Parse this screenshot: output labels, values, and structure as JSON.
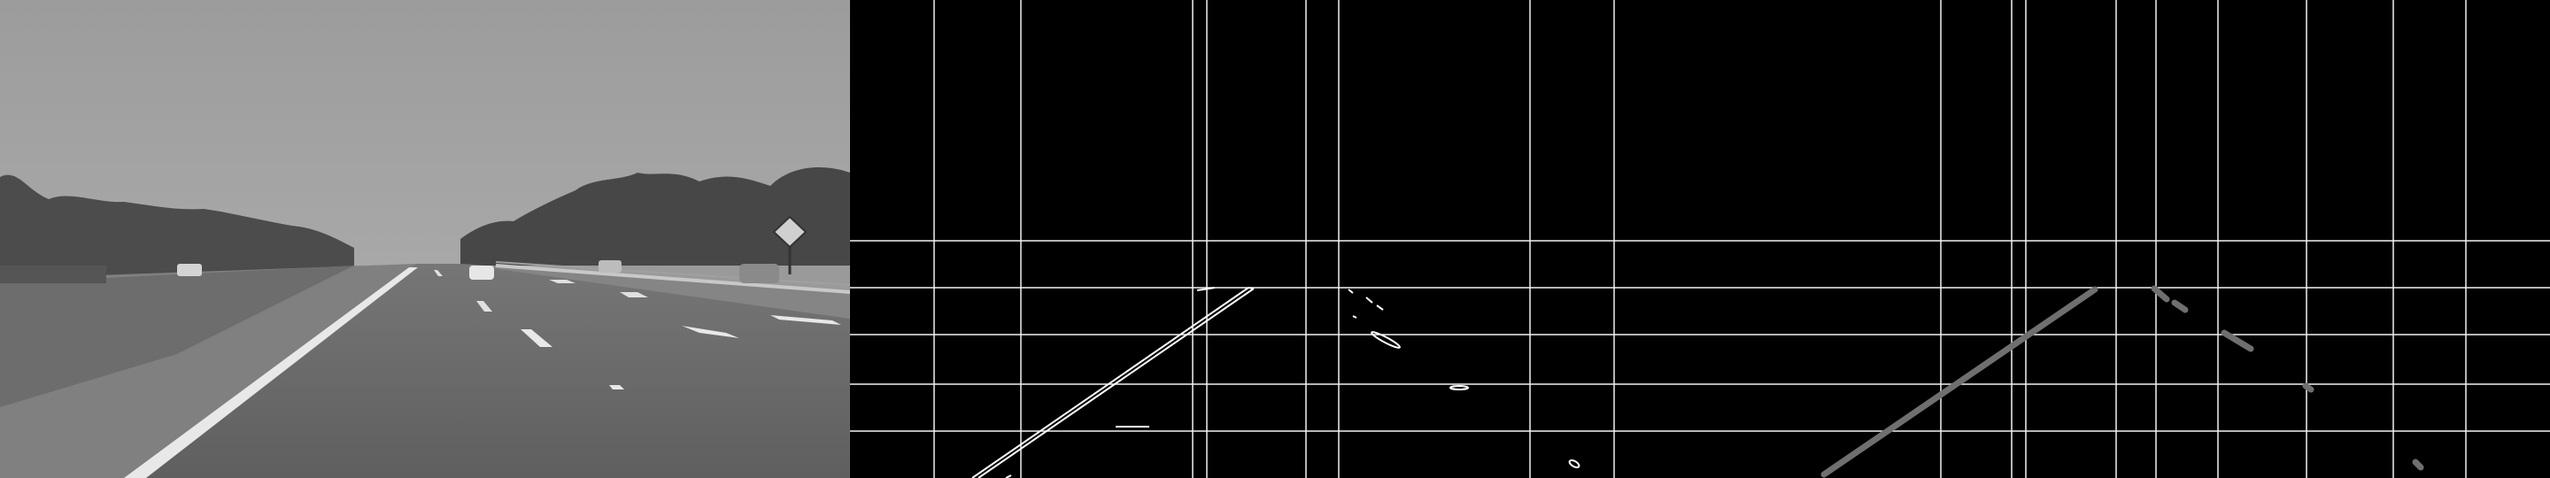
{
  "panels": [
    {
      "id": "p1",
      "content": "grayscale-road-photo"
    },
    {
      "id": "p2",
      "content": "edge-detection-with-grid"
    },
    {
      "id": "p3",
      "content": "hough-lines-with-grid"
    }
  ],
  "colors": {
    "sky": "#9a9a9a",
    "road": "#6b6b6b",
    "trees": "#4a4a4a",
    "grass": "#7e7e7e",
    "edge": "#ffffff",
    "hough_line": "#6f6f6f",
    "grid": "#ffffff",
    "background": "#000000"
  }
}
